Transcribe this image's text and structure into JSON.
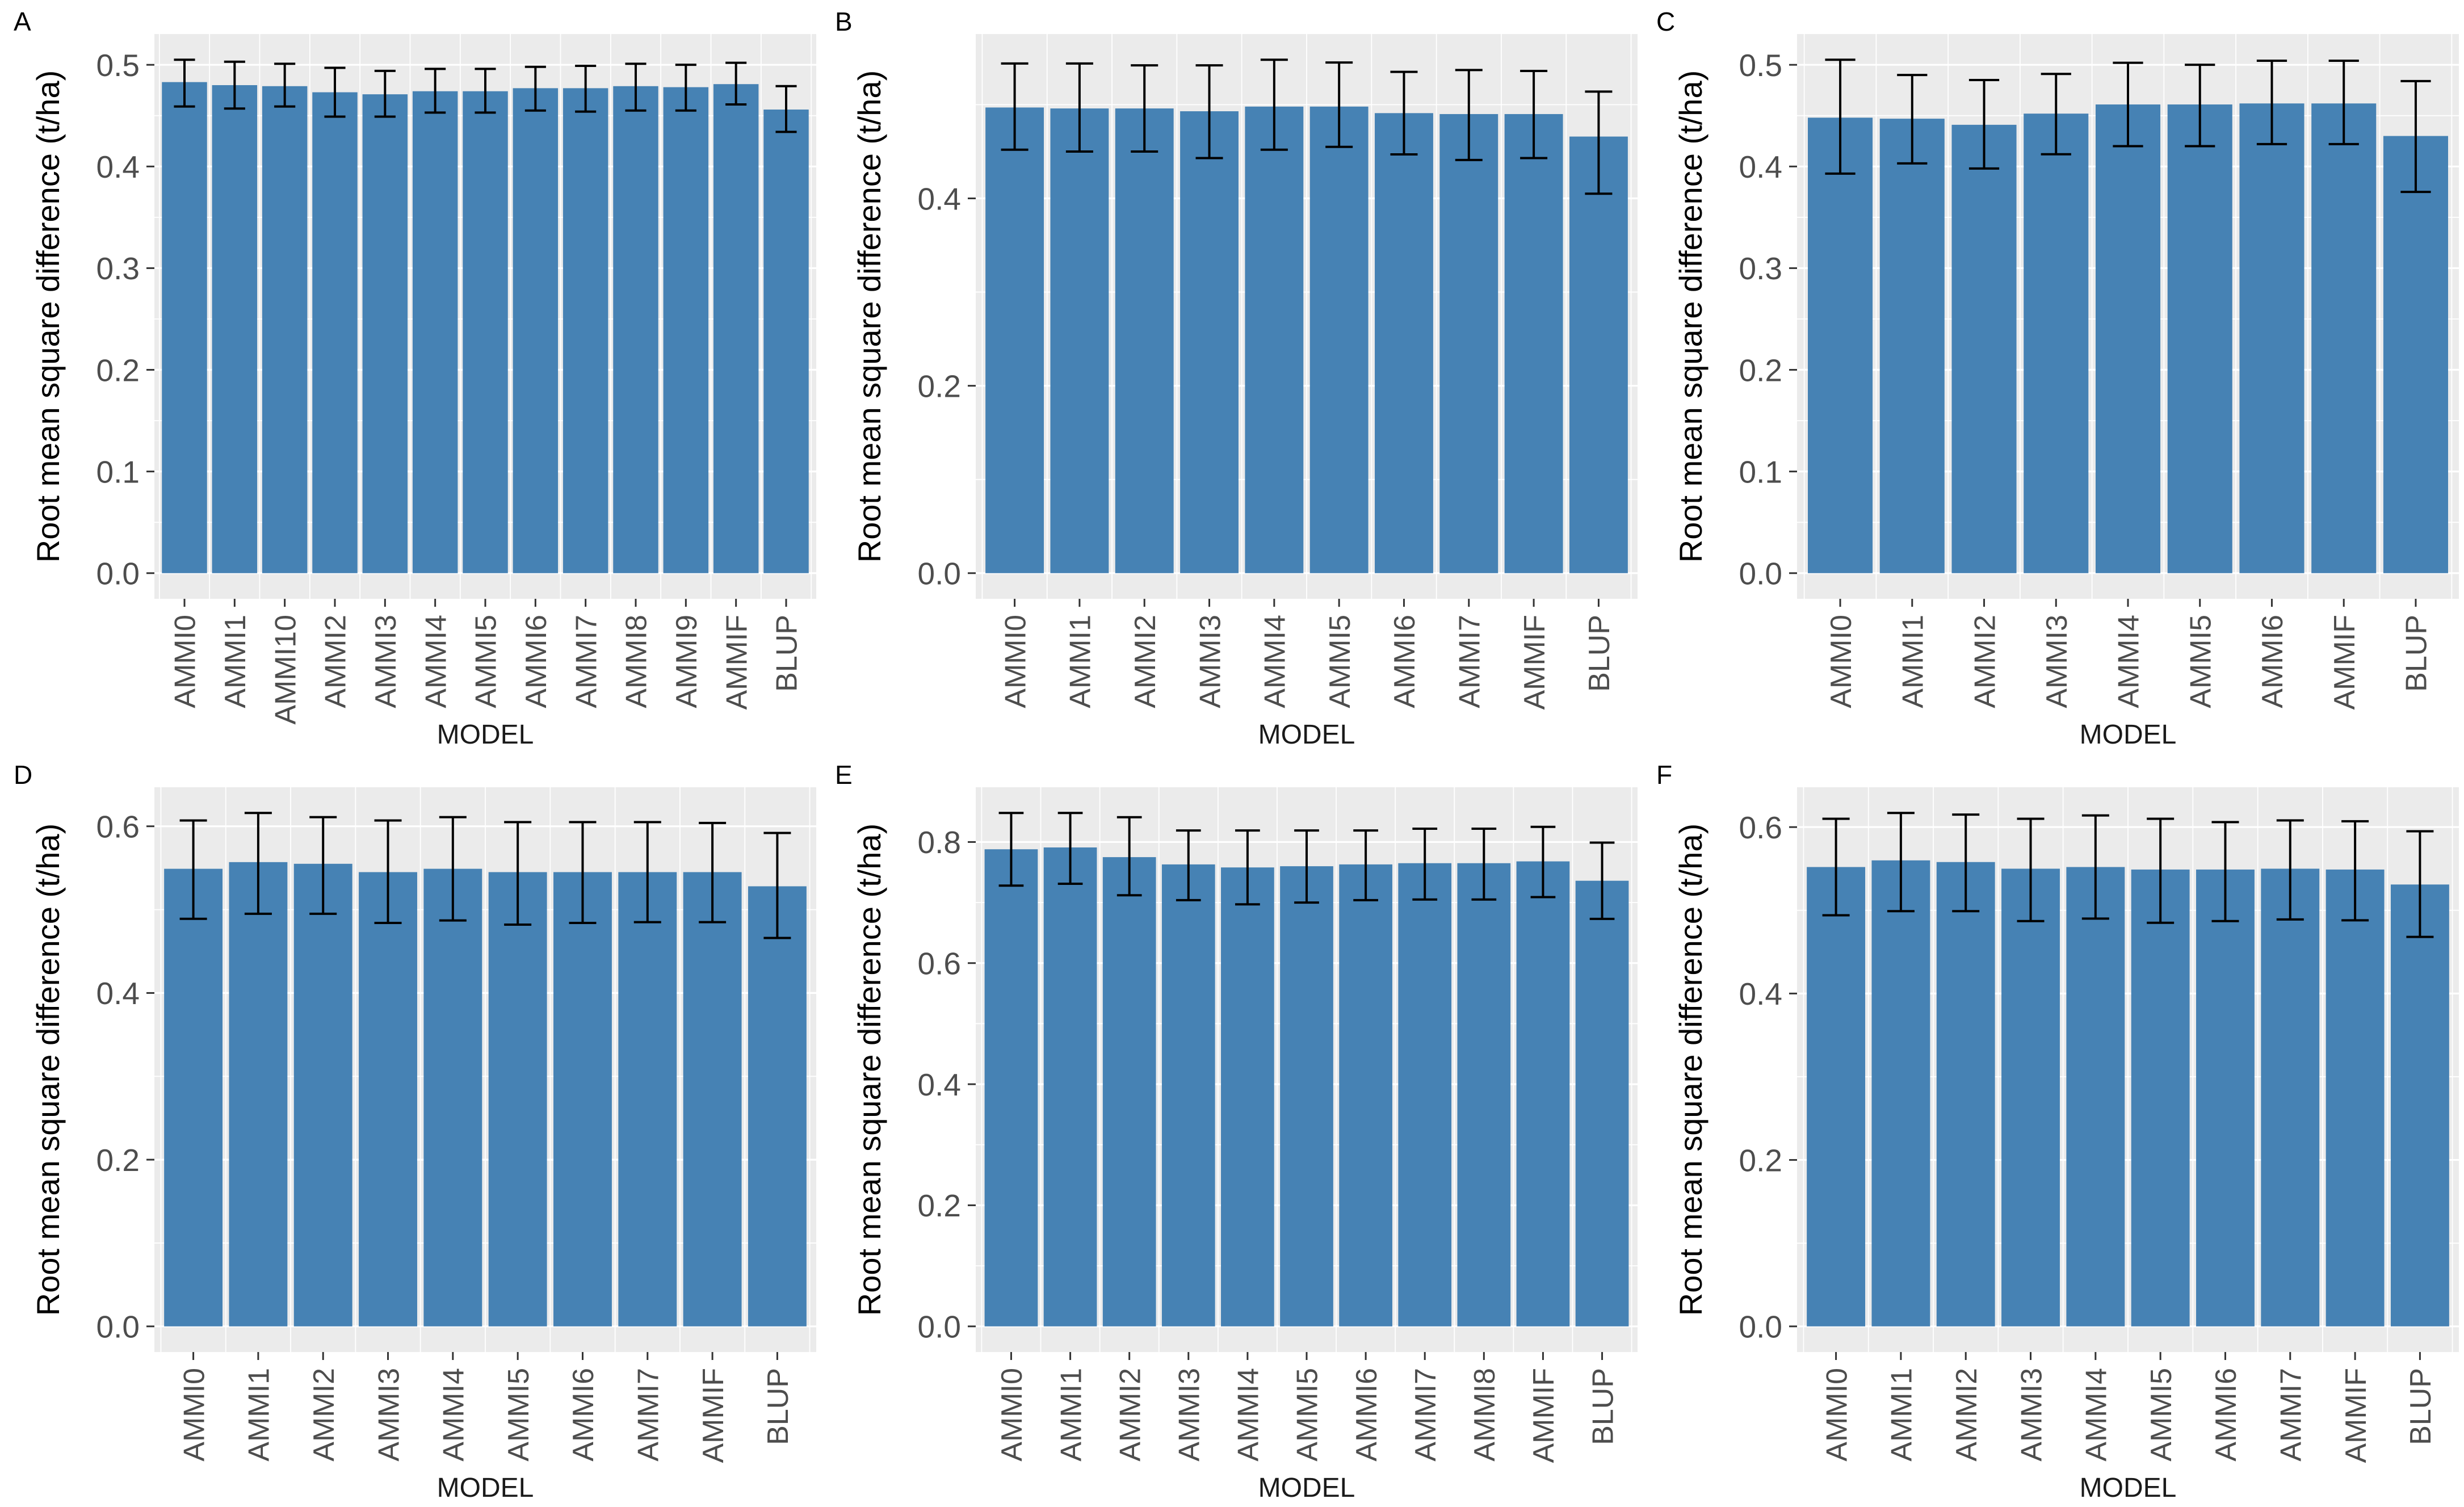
{
  "figure": {
    "description": "Six-panel bar chart figure comparing AMMI-family models and BLUP",
    "background": "#ffffff"
  },
  "style": {
    "bar_color": "#4682b4",
    "panel_bg": "#ebebeb",
    "grid_color": "#ffffff",
    "error_color": "#000000",
    "tick_mark_color": "#333333",
    "tick_label_color": "#4d4d4d",
    "axis_title_color": "#000000"
  },
  "chart_data": [
    {
      "type": "bar",
      "panel_label": "A",
      "xlabel": "MODEL",
      "ylabel": "Root mean square difference (t/ha)",
      "categories": [
        "AMMI0",
        "AMMI1",
        "AMMI10",
        "AMMI2",
        "AMMI3",
        "AMMI4",
        "AMMI5",
        "AMMI6",
        "AMMI7",
        "AMMI8",
        "AMMI9",
        "AMMIF",
        "BLUP"
      ],
      "values": [
        0.483,
        0.48,
        0.479,
        0.473,
        0.471,
        0.474,
        0.474,
        0.477,
        0.477,
        0.479,
        0.478,
        0.481,
        0.456
      ],
      "error_low": [
        0.459,
        0.457,
        0.459,
        0.449,
        0.449,
        0.453,
        0.453,
        0.455,
        0.454,
        0.455,
        0.455,
        0.461,
        0.434
      ],
      "error_high": [
        0.505,
        0.503,
        0.501,
        0.497,
        0.494,
        0.496,
        0.496,
        0.498,
        0.499,
        0.501,
        0.5,
        0.502,
        0.479
      ],
      "yticks": [
        0.0,
        0.1,
        0.2,
        0.3,
        0.4,
        0.5
      ],
      "ylim": [
        0,
        0.53
      ],
      "grid": true,
      "legend": false
    },
    {
      "type": "bar",
      "panel_label": "B",
      "xlabel": "MODEL",
      "ylabel": "Root mean square difference (t/ha)",
      "categories": [
        "AMMI0",
        "AMMI1",
        "AMMI2",
        "AMMI3",
        "AMMI4",
        "AMMI5",
        "AMMI6",
        "AMMI7",
        "AMMIF",
        "BLUP"
      ],
      "values": [
        0.497,
        0.496,
        0.496,
        0.493,
        0.498,
        0.498,
        0.491,
        0.49,
        0.49,
        0.466
      ],
      "error_low": [
        0.452,
        0.45,
        0.45,
        0.443,
        0.452,
        0.455,
        0.447,
        0.441,
        0.443,
        0.405
      ],
      "error_high": [
        0.544,
        0.544,
        0.542,
        0.542,
        0.548,
        0.545,
        0.535,
        0.537,
        0.536,
        0.514
      ],
      "yticks": [
        0.0,
        0.2,
        0.4
      ],
      "ylim": [
        0,
        0.575
      ],
      "grid": true,
      "legend": false
    },
    {
      "type": "bar",
      "panel_label": "C",
      "xlabel": "MODEL",
      "ylabel": "Root mean square difference (t/ha)",
      "categories": [
        "AMMI0",
        "AMMI1",
        "AMMI2",
        "AMMI3",
        "AMMI4",
        "AMMI5",
        "AMMI6",
        "AMMIF",
        "BLUP"
      ],
      "values": [
        0.448,
        0.447,
        0.441,
        0.452,
        0.461,
        0.461,
        0.462,
        0.462,
        0.43
      ],
      "error_low": [
        0.393,
        0.403,
        0.398,
        0.412,
        0.42,
        0.42,
        0.422,
        0.422,
        0.375
      ],
      "error_high": [
        0.505,
        0.49,
        0.485,
        0.491,
        0.502,
        0.5,
        0.504,
        0.504,
        0.484
      ],
      "yticks": [
        0.0,
        0.1,
        0.2,
        0.3,
        0.4,
        0.5
      ],
      "ylim": [
        0,
        0.53
      ],
      "grid": true,
      "legend": false
    },
    {
      "type": "bar",
      "panel_label": "D",
      "xlabel": "MODEL",
      "ylabel": "Root mean square difference (t/ha)",
      "categories": [
        "AMMI0",
        "AMMI1",
        "AMMI2",
        "AMMI3",
        "AMMI4",
        "AMMI5",
        "AMMI6",
        "AMMI7",
        "AMMIF",
        "BLUP"
      ],
      "values": [
        0.549,
        0.557,
        0.555,
        0.545,
        0.549,
        0.545,
        0.545,
        0.545,
        0.545,
        0.528
      ],
      "error_low": [
        0.489,
        0.495,
        0.495,
        0.484,
        0.487,
        0.482,
        0.484,
        0.485,
        0.485,
        0.466
      ],
      "error_high": [
        0.607,
        0.616,
        0.611,
        0.607,
        0.611,
        0.605,
        0.605,
        0.605,
        0.604,
        0.592
      ],
      "yticks": [
        0.0,
        0.2,
        0.4,
        0.6
      ],
      "ylim": [
        0,
        0.65
      ],
      "grid": true,
      "legend": false
    },
    {
      "type": "bar",
      "panel_label": "E",
      "xlabel": "MODEL",
      "ylabel": "Root mean square difference (t/ha)",
      "categories": [
        "AMMI0",
        "AMMI1",
        "AMMI2",
        "AMMI3",
        "AMMI4",
        "AMMI5",
        "AMMI6",
        "AMMI7",
        "AMMI8",
        "AMMIF",
        "BLUP"
      ],
      "values": [
        0.788,
        0.791,
        0.775,
        0.763,
        0.758,
        0.76,
        0.763,
        0.765,
        0.765,
        0.768,
        0.736
      ],
      "error_low": [
        0.728,
        0.731,
        0.712,
        0.704,
        0.697,
        0.7,
        0.704,
        0.705,
        0.705,
        0.709,
        0.673
      ],
      "error_high": [
        0.848,
        0.848,
        0.841,
        0.819,
        0.819,
        0.819,
        0.819,
        0.822,
        0.822,
        0.825,
        0.799
      ],
      "yticks": [
        0.0,
        0.2,
        0.4,
        0.6,
        0.8
      ],
      "ylim": [
        0,
        0.89
      ],
      "grid": true,
      "legend": false
    },
    {
      "type": "bar",
      "panel_label": "F",
      "xlabel": "MODEL",
      "ylabel": "Root mean square difference (t/ha)",
      "categories": [
        "AMMI0",
        "AMMI1",
        "AMMI2",
        "AMMI3",
        "AMMI4",
        "AMMI5",
        "AMMI6",
        "AMMI7",
        "AMMIF",
        "BLUP"
      ],
      "values": [
        0.552,
        0.56,
        0.558,
        0.55,
        0.552,
        0.549,
        0.549,
        0.55,
        0.549,
        0.531
      ],
      "error_low": [
        0.494,
        0.499,
        0.499,
        0.487,
        0.49,
        0.485,
        0.487,
        0.489,
        0.488,
        0.468
      ],
      "error_high": [
        0.61,
        0.617,
        0.615,
        0.61,
        0.614,
        0.61,
        0.606,
        0.608,
        0.607,
        0.595
      ],
      "yticks": [
        0.0,
        0.2,
        0.4,
        0.6
      ],
      "ylim": [
        0,
        0.65
      ],
      "grid": true,
      "legend": false
    }
  ]
}
